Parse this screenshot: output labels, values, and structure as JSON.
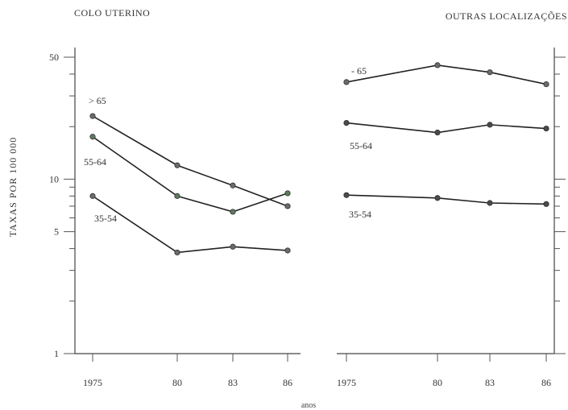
{
  "chart_data": {
    "type": "line",
    "ylabel": "TAXAS POR 100 000",
    "xlabel": "anos",
    "yscale": "log",
    "ylim": [
      1,
      50
    ],
    "yticks": [
      1,
      5,
      10,
      50
    ],
    "grid": false,
    "panels": [
      {
        "title": "COLO UTERINO",
        "categories": [
          "1975",
          "80",
          "83",
          "86"
        ],
        "series": [
          {
            "name": "> 65",
            "values": [
              23,
              12,
              9.2,
              7.0
            ],
            "color": "#6b6b6b"
          },
          {
            "name": "55-64",
            "values": [
              17.5,
              8.0,
              6.5,
              8.3
            ],
            "color": "#5e7a5e"
          },
          {
            "name": "35-54",
            "values": [
              8.0,
              3.8,
              4.1,
              3.9
            ],
            "color": "#6b6b6b"
          }
        ]
      },
      {
        "title": "OUTRAS LOCALIZAÇÕES",
        "categories": [
          "1975",
          "80",
          "83",
          "86"
        ],
        "series": [
          {
            "name": "- 65",
            "values": [
              36,
              45,
              41,
              35
            ],
            "color": "#6b6b6b"
          },
          {
            "name": "55-64",
            "values": [
              21,
              18.5,
              20.5,
              19.5
            ],
            "color": "#4a4a4a"
          },
          {
            "name": "35-54",
            "values": [
              8.1,
              7.8,
              7.3,
              7.2
            ],
            "color": "#4a4a4a"
          }
        ]
      }
    ]
  }
}
